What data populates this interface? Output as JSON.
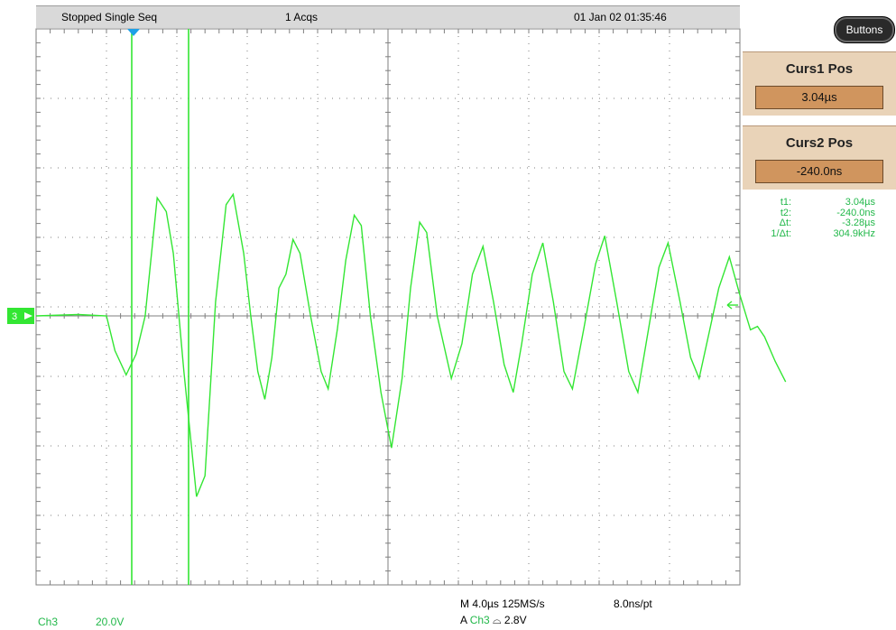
{
  "status": {
    "state": "Stopped  Single Seq",
    "acquisitions": "1 Acqs",
    "datetime": "01 Jan 02 01:35:46"
  },
  "buttons_label": "Buttons",
  "cursor1": {
    "title": "Curs1 Pos",
    "value": "3.04µs"
  },
  "cursor2": {
    "title": "Curs2 Pos",
    "value": "-240.0ns"
  },
  "readout": [
    {
      "label": "t1",
      "value": "3.04µs"
    },
    {
      "label": "t2",
      "value": "-240.0ns"
    },
    {
      "label": "Δt",
      "value": "-3.28µs"
    },
    {
      "label": "1/Δt",
      "value": "304.9kHz"
    }
  ],
  "channel": {
    "name": "Ch3",
    "scale": "20.0V",
    "marker": "3"
  },
  "horizontal": {
    "timebase": "M 4.0µs",
    "sample_rate": "125MS/s",
    "interval": "8.0ns/pt"
  },
  "trigger": {
    "mode": "A",
    "source": "Ch3",
    "slope": "⌓",
    "level": "2.8V"
  },
  "colors": {
    "trace": "#33e633",
    "cursor": "#33e633",
    "grid": "#7f7f7f",
    "trigger_marker": "#1ea0e6",
    "panel": "#e9d3b8",
    "panel_field": "#d0955e"
  },
  "waveform": {
    "divisions_per_div_h": 4.0,
    "samples_divisions": [
      [
        0.0,
        0.0
      ],
      [
        0.6,
        0.02
      ],
      [
        1.0,
        0.0
      ],
      [
        1.12,
        -0.5
      ],
      [
        1.28,
        -0.85
      ],
      [
        1.42,
        -0.55
      ],
      [
        1.55,
        0.0
      ],
      [
        1.72,
        1.7
      ],
      [
        1.85,
        1.5
      ],
      [
        1.95,
        0.9
      ],
      [
        2.1,
        -0.8
      ],
      [
        2.28,
        -2.6
      ],
      [
        2.4,
        -2.3
      ],
      [
        2.55,
        0.2
      ],
      [
        2.7,
        1.6
      ],
      [
        2.8,
        1.75
      ],
      [
        2.95,
        0.9
      ],
      [
        3.05,
        0.0
      ],
      [
        3.15,
        -0.8
      ],
      [
        3.25,
        -1.2
      ],
      [
        3.35,
        -0.6
      ],
      [
        3.45,
        0.4
      ],
      [
        3.55,
        0.6
      ],
      [
        3.65,
        1.1
      ],
      [
        3.75,
        0.9
      ],
      [
        3.9,
        0.0
      ],
      [
        4.05,
        -0.8
      ],
      [
        4.15,
        -1.05
      ],
      [
        4.28,
        -0.2
      ],
      [
        4.4,
        0.8
      ],
      [
        4.52,
        1.45
      ],
      [
        4.62,
        1.3
      ],
      [
        4.75,
        0.0
      ],
      [
        4.9,
        -1.1
      ],
      [
        5.05,
        -1.9
      ],
      [
        5.2,
        -0.9
      ],
      [
        5.32,
        0.4
      ],
      [
        5.45,
        1.35
      ],
      [
        5.55,
        1.2
      ],
      [
        5.7,
        0.0
      ],
      [
        5.9,
        -0.9
      ],
      [
        6.05,
        -0.4
      ],
      [
        6.2,
        0.6
      ],
      [
        6.35,
        1.0
      ],
      [
        6.5,
        0.2
      ],
      [
        6.65,
        -0.7
      ],
      [
        6.78,
        -1.1
      ],
      [
        6.9,
        -0.4
      ],
      [
        7.05,
        0.6
      ],
      [
        7.2,
        1.05
      ],
      [
        7.35,
        0.2
      ],
      [
        7.5,
        -0.8
      ],
      [
        7.62,
        -1.05
      ],
      [
        7.78,
        -0.2
      ],
      [
        7.95,
        0.75
      ],
      [
        8.08,
        1.15
      ],
      [
        8.25,
        0.2
      ],
      [
        8.42,
        -0.8
      ],
      [
        8.55,
        -1.1
      ],
      [
        8.7,
        -0.2
      ],
      [
        8.85,
        0.7
      ],
      [
        8.98,
        1.05
      ],
      [
        9.15,
        0.2
      ],
      [
        9.3,
        -0.6
      ],
      [
        9.42,
        -0.9
      ],
      [
        9.55,
        -0.3
      ],
      [
        9.7,
        0.4
      ],
      [
        9.85,
        0.85
      ],
      [
        10.0,
        0.3
      ],
      [
        10.15,
        -0.2
      ],
      [
        10.25,
        -0.15
      ],
      [
        10.35,
        -0.3
      ],
      [
        10.5,
        -0.65
      ],
      [
        10.6,
        -0.85
      ],
      [
        10.65,
        -0.95
      ]
    ]
  }
}
